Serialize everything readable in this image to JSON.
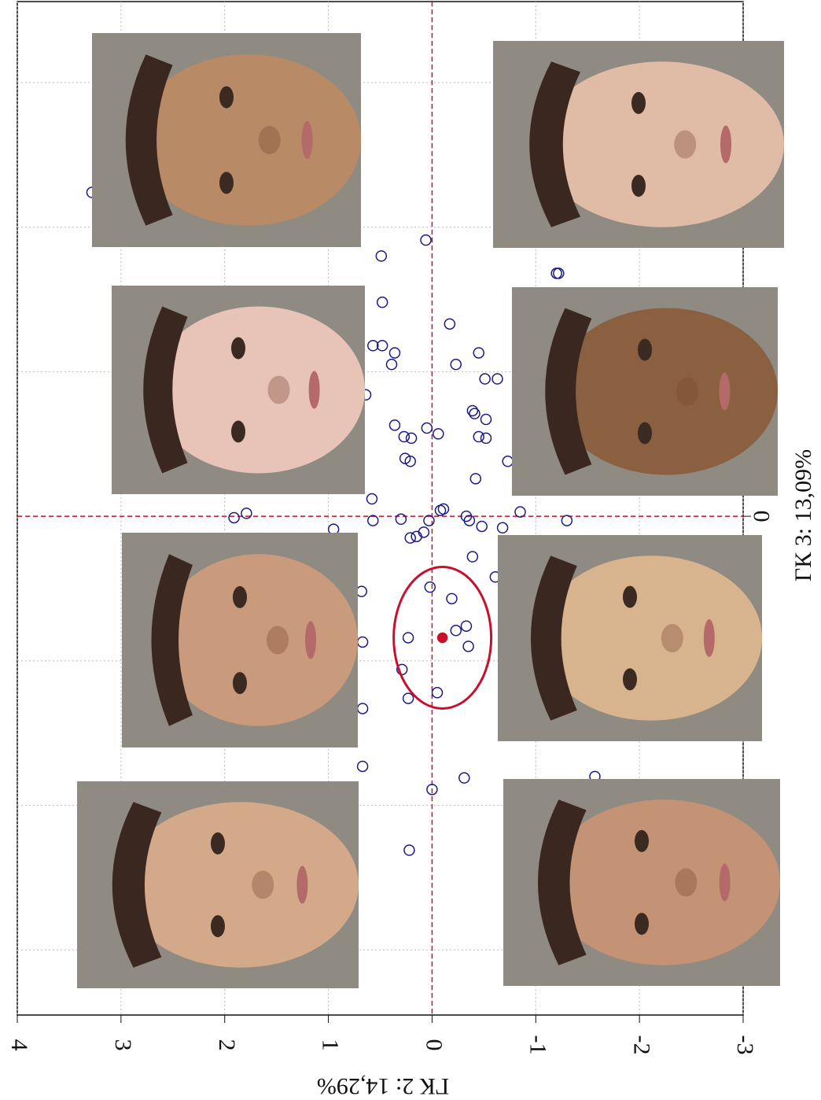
{
  "chart_data": {
    "type": "scatter",
    "xlabel": "ГК 2: 14,29%",
    "ylabel": "ГК 3: 13,09%",
    "xlim": [
      4,
      -3
    ],
    "xticks": [
      4,
      3,
      2,
      1,
      0,
      -1,
      -2,
      -3
    ],
    "ylim": [
      -3.56,
      3.45
    ],
    "yticks": [
      0
    ],
    "ygrid": [
      -3,
      -2,
      -1,
      0,
      1,
      2,
      3
    ],
    "grid": true,
    "zero_lines_color": "#c8102e",
    "series": [
      {
        "color": "#1a1a8c",
        "filled": false,
        "x": [
          3.28,
          0.06,
          0.49,
          -1.2,
          -1.22,
          0.48,
          -0.17,
          0.57,
          0.48,
          0.36,
          -0.45,
          0.39,
          -0.23,
          0.64,
          -0.51,
          -0.63,
          -0.39,
          -0.41,
          -0.52,
          0.36,
          0.05,
          0.27,
          -0.06,
          0.2,
          -0.45,
          -0.52,
          0.26,
          0.21,
          -0.73,
          -0.42,
          0.58,
          1.91,
          1.79,
          -0.11,
          -0.08,
          -0.33,
          -0.36,
          -0.85,
          0.3,
          0.03,
          -0.48,
          -1.3,
          0.57,
          -0.68,
          0.95,
          0.15,
          0.08,
          0.21,
          -0.39,
          -0.61,
          0.68,
          0.02,
          -0.19,
          -0.23,
          0.23,
          -0.33,
          -0.35,
          0.67,
          0.29,
          0.23,
          -0.05,
          0.67,
          0.67,
          -0.31,
          0,
          0.22,
          -1.57
        ],
        "values": [
          -2.24,
          -1.91,
          -1.8,
          -1.68,
          -1.68,
          -1.48,
          -1.33,
          -1.18,
          -1.18,
          -1.13,
          -1.13,
          -1.05,
          -1.05,
          -0.84,
          -0.95,
          -0.95,
          -0.73,
          -0.71,
          -0.67,
          -0.63,
          -0.61,
          -0.55,
          -0.57,
          -0.54,
          -0.55,
          -0.54,
          -0.4,
          -0.38,
          -0.38,
          -0.26,
          -0.12,
          0.01,
          -0.02,
          -0.05,
          -0.04,
          0,
          0.03,
          -0.03,
          0.02,
          0.03,
          0.07,
          0.03,
          0.03,
          0.08,
          0.09,
          0.14,
          0.11,
          0.15,
          0.28,
          0.42,
          0.52,
          0.49,
          0.57,
          0.79,
          0.84,
          0.76,
          0.9,
          0.87,
          1.06,
          1.26,
          1.22,
          1.33,
          1.73,
          1.81,
          1.89,
          2.31,
          1.8
        ]
      },
      {
        "color": "#c8102e",
        "filled": true,
        "x": [
          -0.1
        ],
        "values": [
          0.84
        ]
      }
    ]
  }
}
